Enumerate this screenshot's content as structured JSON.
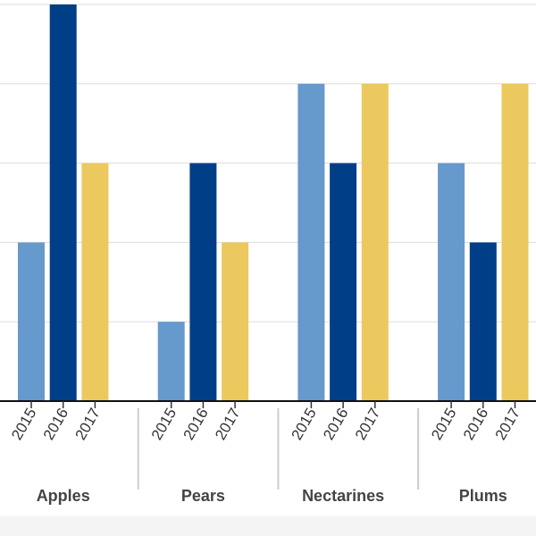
{
  "chart_data": {
    "type": "bar",
    "categories": [
      "Apples",
      "Pears",
      "Nectarines",
      "Plums"
    ],
    "x_sub_labels": [
      "2015",
      "2016",
      "2017"
    ],
    "series": [
      {
        "values": [
          2,
          1,
          4,
          3
        ],
        "color": "#6699cc"
      },
      {
        "values": [
          5,
          3,
          3,
          2
        ],
        "color": "#003f87"
      },
      {
        "values": [
          3,
          2,
          4,
          4
        ],
        "color": "#ecc95e"
      }
    ],
    "ylim": [
      0,
      5
    ],
    "grid": true,
    "legend": "none"
  }
}
